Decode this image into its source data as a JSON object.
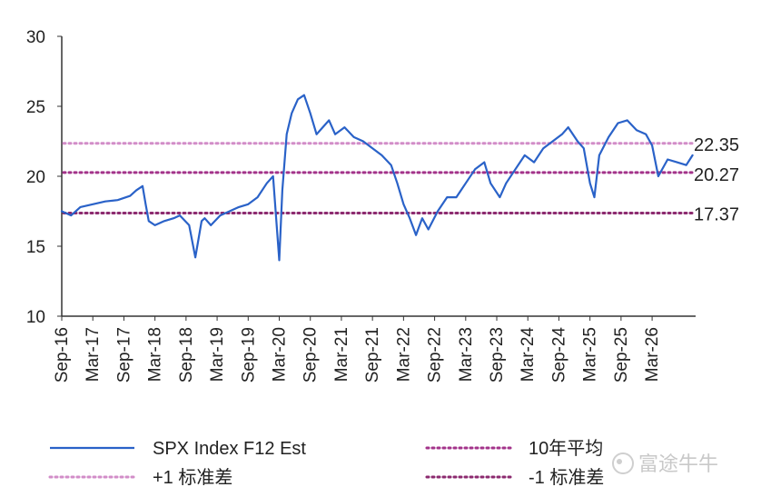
{
  "chart_data": {
    "type": "line",
    "title": "",
    "xlabel": "",
    "ylabel": "",
    "ylim": [
      10,
      30
    ],
    "yticks": [
      10,
      15,
      20,
      25,
      30
    ],
    "xticks": [
      "Sep-16",
      "Mar-17",
      "Sep-17",
      "Mar-18",
      "Sep-18",
      "Mar-19",
      "Sep-19",
      "Mar-20",
      "Sep-20",
      "Mar-21",
      "Sep-21",
      "Mar-22",
      "Sep-22",
      "Mar-23",
      "Sep-23",
      "Mar-24",
      "Sep-24",
      "Mar-25",
      "Sep-25",
      "Mar-26"
    ],
    "xlim": [
      2016.7,
      2026.9
    ],
    "grid": false,
    "legend_position": "bottom",
    "series": [
      {
        "name": "SPX Index F12 Est",
        "color": "#2a62c8",
        "x": [
          2016.7,
          2016.85,
          2017.0,
          2017.2,
          2017.4,
          2017.6,
          2017.8,
          2017.9,
          2018.0,
          2018.05,
          2018.1,
          2018.2,
          2018.35,
          2018.5,
          2018.6,
          2018.75,
          2018.85,
          2018.95,
          2019.0,
          2019.1,
          2019.25,
          2019.4,
          2019.55,
          2019.7,
          2019.85,
          2020.0,
          2020.1,
          2020.15,
          2020.2,
          2020.25,
          2020.32,
          2020.4,
          2020.5,
          2020.6,
          2020.7,
          2020.8,
          2020.9,
          2021.0,
          2021.1,
          2021.25,
          2021.4,
          2021.55,
          2021.7,
          2021.85,
          2022.0,
          2022.1,
          2022.2,
          2022.3,
          2022.4,
          2022.5,
          2022.6,
          2022.75,
          2022.9,
          2023.05,
          2023.2,
          2023.35,
          2023.5,
          2023.6,
          2023.75,
          2023.85,
          2024.0,
          2024.15,
          2024.3,
          2024.45,
          2024.6,
          2024.75,
          2024.85,
          2025.0,
          2025.1,
          2025.2,
          2025.27,
          2025.35,
          2025.5,
          2025.65,
          2025.8,
          2025.95,
          2026.1,
          2026.2,
          2026.3,
          2026.45,
          2026.6,
          2026.75,
          2026.85
        ],
        "y": [
          17.5,
          17.2,
          17.8,
          18.0,
          18.2,
          18.3,
          18.6,
          19.0,
          19.3,
          18.0,
          16.8,
          16.5,
          16.8,
          17.0,
          17.2,
          16.5,
          14.2,
          16.8,
          17.0,
          16.5,
          17.2,
          17.5,
          17.8,
          18.0,
          18.5,
          19.5,
          20.0,
          17.0,
          14.0,
          19.0,
          23.0,
          24.5,
          25.5,
          25.8,
          24.5,
          23.0,
          23.5,
          24.0,
          23.0,
          23.5,
          22.8,
          22.5,
          22.0,
          21.5,
          20.8,
          19.5,
          18.0,
          17.0,
          15.8,
          17.0,
          16.2,
          17.5,
          18.5,
          18.5,
          19.5,
          20.5,
          21.0,
          19.5,
          18.5,
          19.5,
          20.5,
          21.5,
          21.0,
          22.0,
          22.5,
          23.0,
          23.5,
          22.5,
          22.0,
          19.5,
          18.5,
          21.5,
          22.8,
          23.8,
          24.0,
          23.3,
          23.0,
          22.2,
          20.0,
          21.2,
          21.0,
          20.8,
          21.5
        ]
      },
      {
        "name": "10年平均",
        "color": "#a3338a",
        "y": 20.27
      },
      {
        "name": "+1 标准差",
        "color": "#d28dc8",
        "y": 22.35
      },
      {
        "name": "-1 标准差",
        "color": "#8c2a6f",
        "y": 17.37
      }
    ],
    "reference_labels": [
      "22.35",
      "20.27",
      "17.37"
    ]
  },
  "watermark": {
    "text": "富途牛牛"
  }
}
